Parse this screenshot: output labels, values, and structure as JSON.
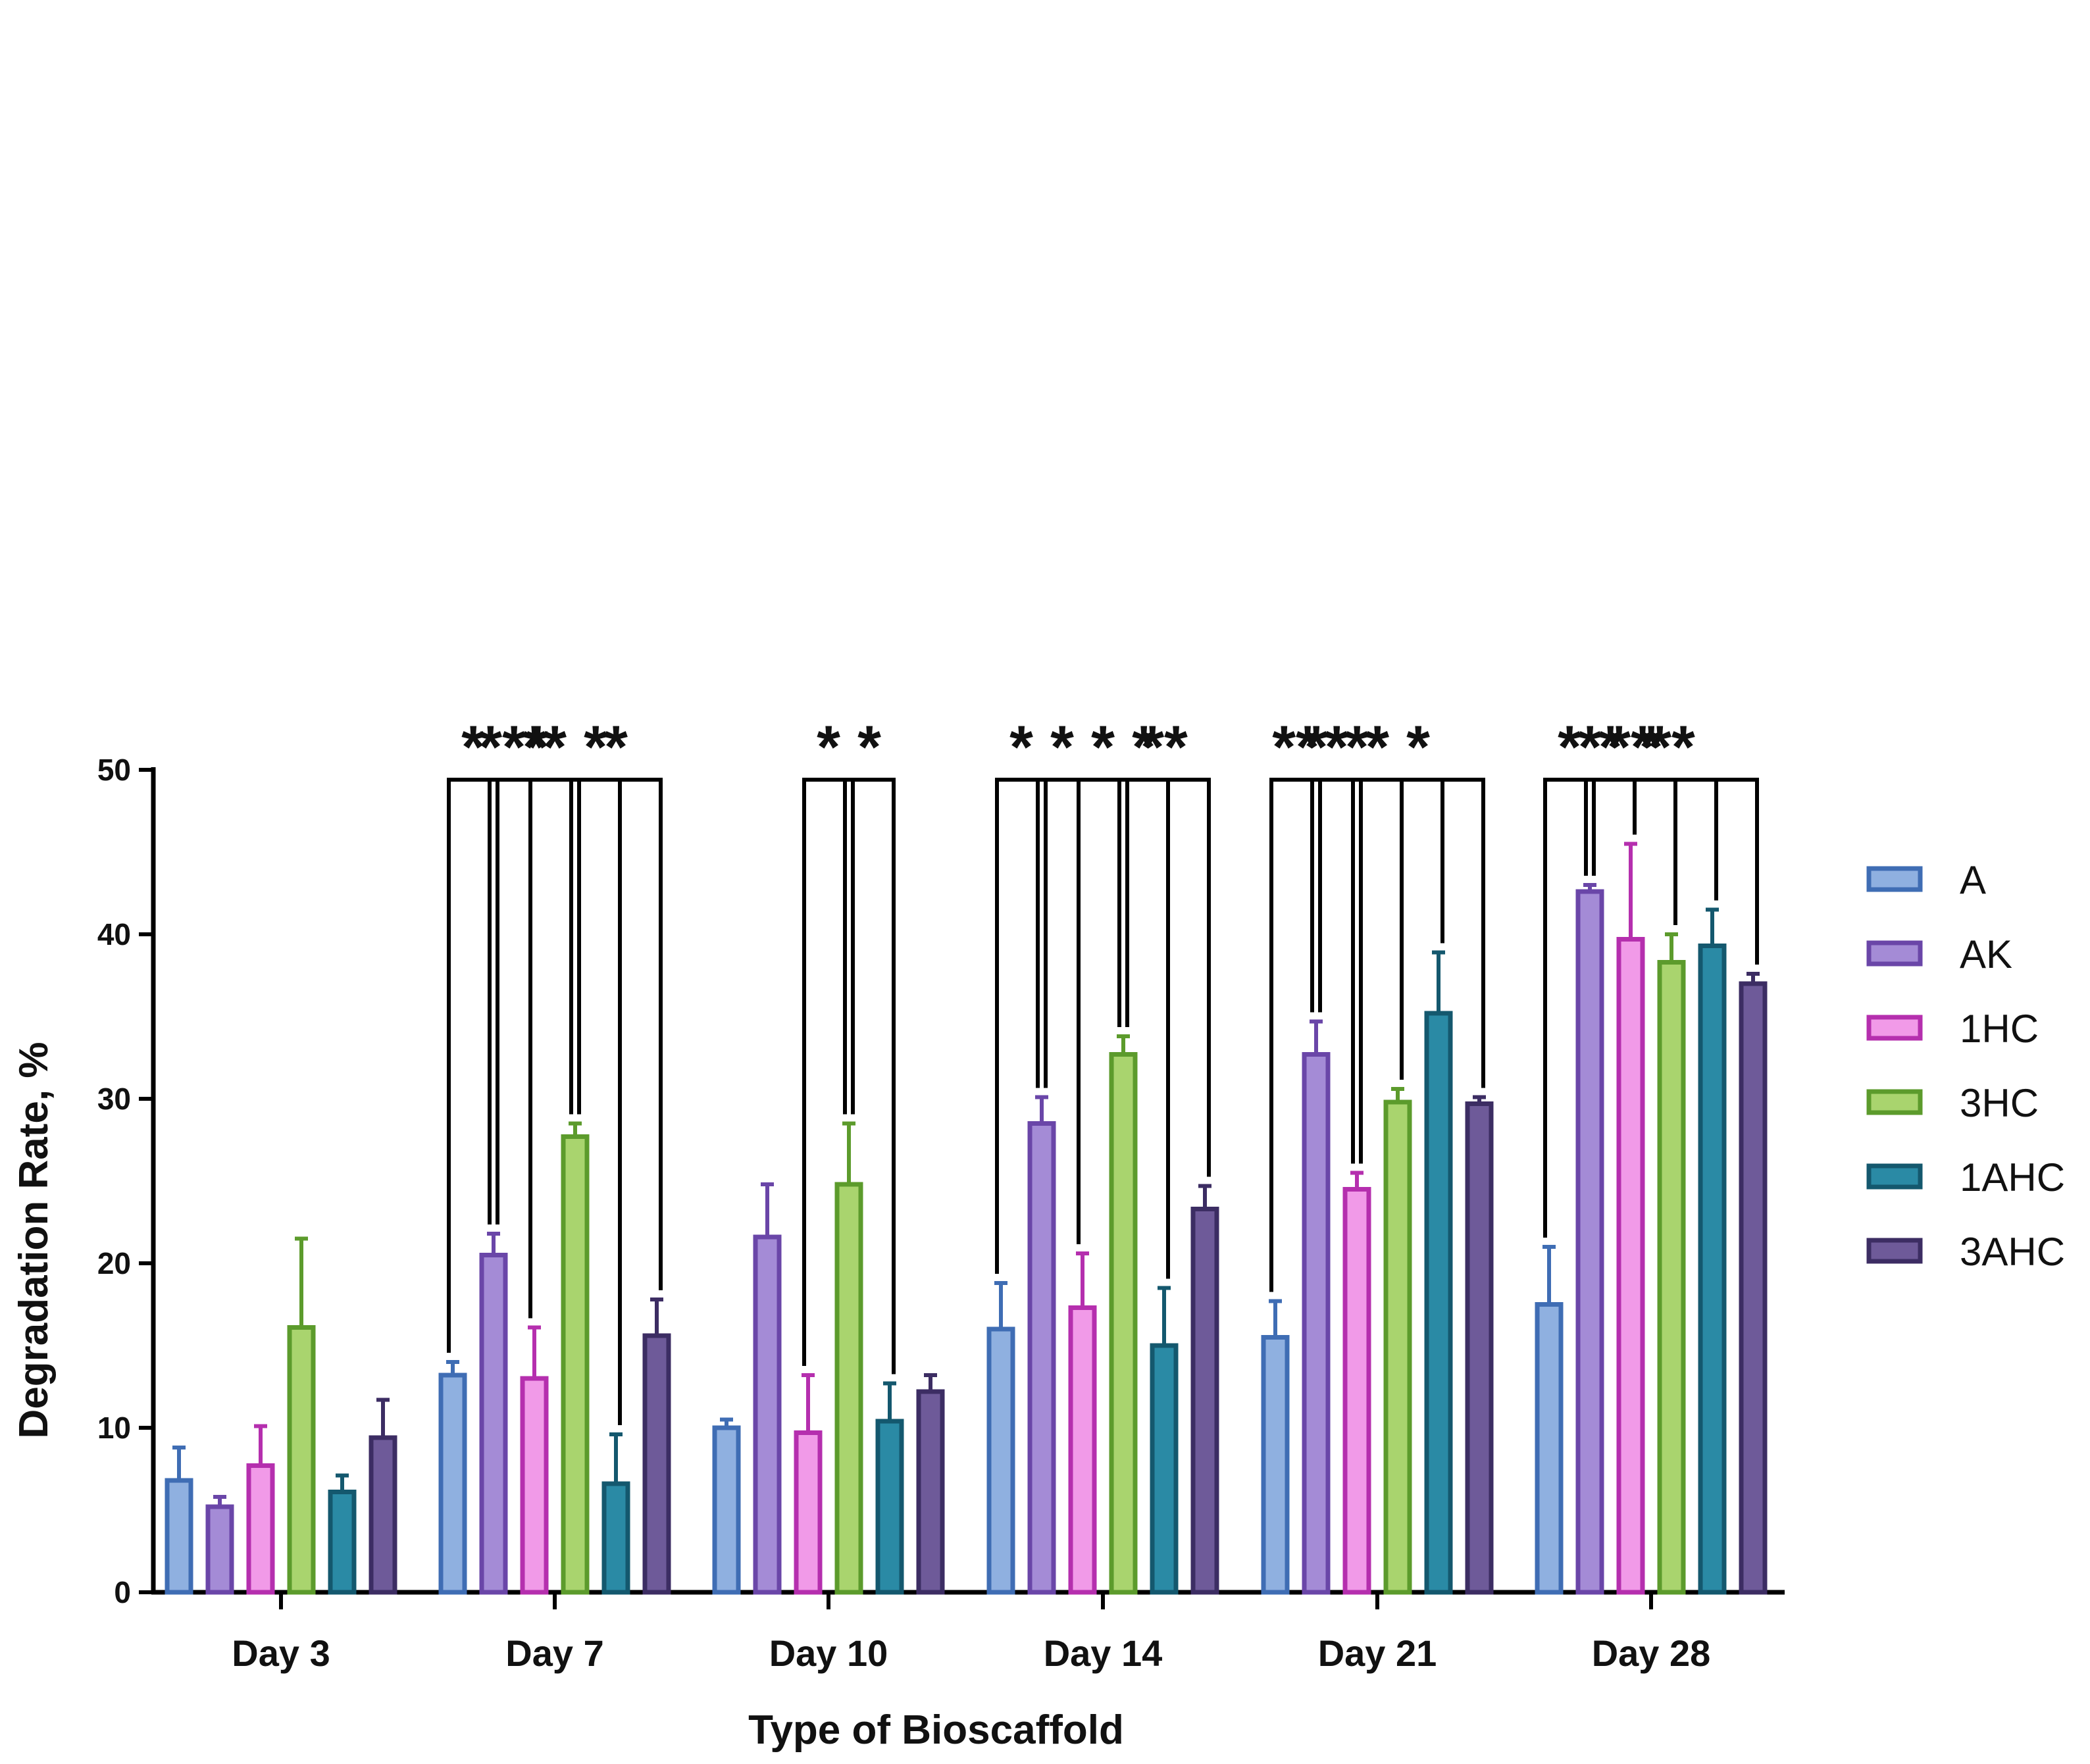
{
  "chart_data": {
    "type": "bar",
    "title": "",
    "xlabel": "Type of Bioscaffold",
    "ylabel": "Degradation Rate, %",
    "ylim": [
      0,
      50
    ],
    "yticks": [
      "0",
      "10",
      "20",
      "30",
      "40",
      "50"
    ],
    "categories": [
      "Day 3",
      "Day 7",
      "Day 10",
      "Day 14",
      "Day 21",
      "Day 28"
    ],
    "legend_position": "right",
    "series": [
      {
        "name": "A",
        "color": "#3f6db4",
        "fill": "#8fb0e0",
        "values": [
          6.8,
          13.2,
          10.0,
          16.0,
          15.5,
          17.5
        ],
        "errors": [
          2.0,
          0.8,
          0.5,
          2.8,
          2.2,
          3.5
        ]
      },
      {
        "name": "AK",
        "color": "#6a46a8",
        "fill": "#a48bd6",
        "values": [
          5.2,
          20.5,
          21.6,
          28.5,
          32.7,
          42.6
        ],
        "errors": [
          0.6,
          1.3,
          3.2,
          1.6,
          2.0,
          0.4
        ]
      },
      {
        "name": "1HC",
        "color": "#b52fae",
        "fill": "#f19ae8",
        "values": [
          7.7,
          13.0,
          9.7,
          17.3,
          24.5,
          39.7
        ],
        "errors": [
          2.4,
          3.1,
          3.5,
          3.3,
          1.0,
          5.8
        ]
      },
      {
        "name": "3HC",
        "color": "#5c9b2c",
        "fill": "#a9d46e",
        "values": [
          16.1,
          27.7,
          24.8,
          32.7,
          29.8,
          38.3
        ],
        "errors": [
          5.4,
          0.8,
          3.7,
          1.1,
          0.8,
          1.7
        ]
      },
      {
        "name": "1AHC",
        "color": "#14586e",
        "fill": "#2a8aa5",
        "values": [
          6.1,
          6.6,
          10.4,
          15.0,
          35.2,
          39.3
        ],
        "errors": [
          1.0,
          3.0,
          2.3,
          3.5,
          3.7,
          2.2
        ]
      },
      {
        "name": "3AHC",
        "color": "#3c2d63",
        "fill": "#6e5a99",
        "values": [
          9.4,
          15.6,
          12.2,
          23.3,
          29.7,
          37.0
        ],
        "errors": [
          2.3,
          2.2,
          1.0,
          1.4,
          0.4,
          0.6
        ]
      }
    ],
    "significance": [
      {
        "day": 1,
        "from": 0,
        "to": 1,
        "label": "*"
      },
      {
        "day": 1,
        "from": 2,
        "to": 3,
        "label": "*"
      },
      {
        "day": 1,
        "from": 3,
        "to": 4,
        "label": "*"
      },
      {
        "day": 1,
        "from": 1,
        "to": 3,
        "label": "*"
      },
      {
        "day": 1,
        "from": 3,
        "to": 5,
        "label": "*"
      },
      {
        "day": 1,
        "from": 0,
        "to": 3,
        "label": "***"
      },
      {
        "day": 1,
        "from": 1,
        "to": 4,
        "label": "*"
      },
      {
        "day": 2,
        "from": 2,
        "to": 3,
        "label": "*"
      },
      {
        "day": 2,
        "from": 3,
        "to": 4,
        "label": "*"
      },
      {
        "day": 3,
        "from": 0,
        "to": 1,
        "label": "*"
      },
      {
        "day": 3,
        "from": 2,
        "to": 3,
        "label": "*"
      },
      {
        "day": 3,
        "from": 0,
        "to": 3,
        "label": "*"
      },
      {
        "day": 3,
        "from": 3,
        "to": 4,
        "label": "*"
      },
      {
        "day": 3,
        "from": 3,
        "to": 5,
        "label": "**"
      },
      {
        "day": 3,
        "from": 1,
        "to": 4,
        "label": "*"
      },
      {
        "day": 4,
        "from": 0,
        "to": 1,
        "label": "**"
      },
      {
        "day": 4,
        "from": 2,
        "to": 5,
        "label": "*"
      },
      {
        "day": 4,
        "from": 1,
        "to": 2,
        "label": "*"
      },
      {
        "day": 4,
        "from": 2,
        "to": 3,
        "label": "*"
      },
      {
        "day": 4,
        "from": 0,
        "to": 2,
        "label": "*"
      },
      {
        "day": 4,
        "from": 0,
        "to": 3,
        "label": "*"
      },
      {
        "day": 4,
        "from": 0,
        "to": 4,
        "label": "*"
      },
      {
        "day": 4,
        "from": 0,
        "to": 5,
        "label": "*"
      },
      {
        "day": 5,
        "from": 0,
        "to": 1,
        "label": "*"
      },
      {
        "day": 5,
        "from": 1,
        "to": 5,
        "label": "**"
      },
      {
        "day": 5,
        "from": 0,
        "to": 2,
        "label": "*"
      },
      {
        "day": 5,
        "from": 0,
        "to": 3,
        "label": "*"
      },
      {
        "day": 5,
        "from": 0,
        "to": 4,
        "label": "**"
      },
      {
        "day": 5,
        "from": 0,
        "to": 5,
        "label": "*"
      }
    ]
  }
}
